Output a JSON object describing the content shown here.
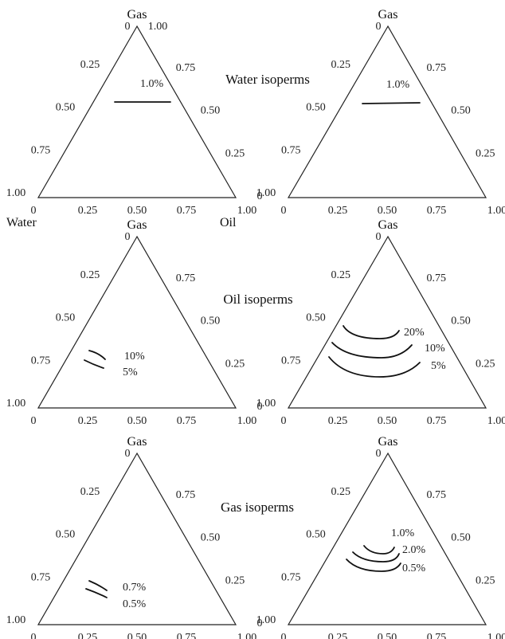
{
  "titles": {
    "water": "Water isoperms",
    "oil": "Oil isoperms",
    "gas": "Gas isoperms"
  },
  "corner_labels": {
    "water": "Water",
    "oil": "Oil"
  },
  "apex_label": "Gas",
  "apex_top_value": "0",
  "apex_top_right_value": "1.00",
  "left_ticks": [
    "0.25",
    "0.50",
    "0.75",
    "1.00"
  ],
  "right_ticks": [
    "0.75",
    "0.50",
    "0.25",
    "0"
  ],
  "bottom_ticks": [
    "0",
    "0.25",
    "0.50",
    "0.75",
    "1.00"
  ],
  "panels": [
    {
      "id": "water-left",
      "show_top_right_value": true,
      "isoperms": [
        {
          "label": "1.0%"
        }
      ]
    },
    {
      "id": "water-right",
      "show_top_right_value": false,
      "isoperms": [
        {
          "label": "1.0%"
        }
      ]
    },
    {
      "id": "oil-left",
      "show_top_right_value": false,
      "isoperms": [
        {
          "label": "10%"
        },
        {
          "label": "5%"
        }
      ]
    },
    {
      "id": "oil-right",
      "show_top_right_value": false,
      "isoperms": [
        {
          "label": "20%"
        },
        {
          "label": "10%"
        },
        {
          "label": "5%"
        }
      ]
    },
    {
      "id": "gas-left",
      "show_top_right_value": false,
      "isoperms": [
        {
          "label": "0.7%"
        },
        {
          "label": "0.5%"
        }
      ]
    },
    {
      "id": "gas-right",
      "show_top_right_value": false,
      "isoperms": [
        {
          "label": "1.0%"
        },
        {
          "label": "2.0%"
        },
        {
          "label": "0.5%"
        }
      ]
    }
  ]
}
